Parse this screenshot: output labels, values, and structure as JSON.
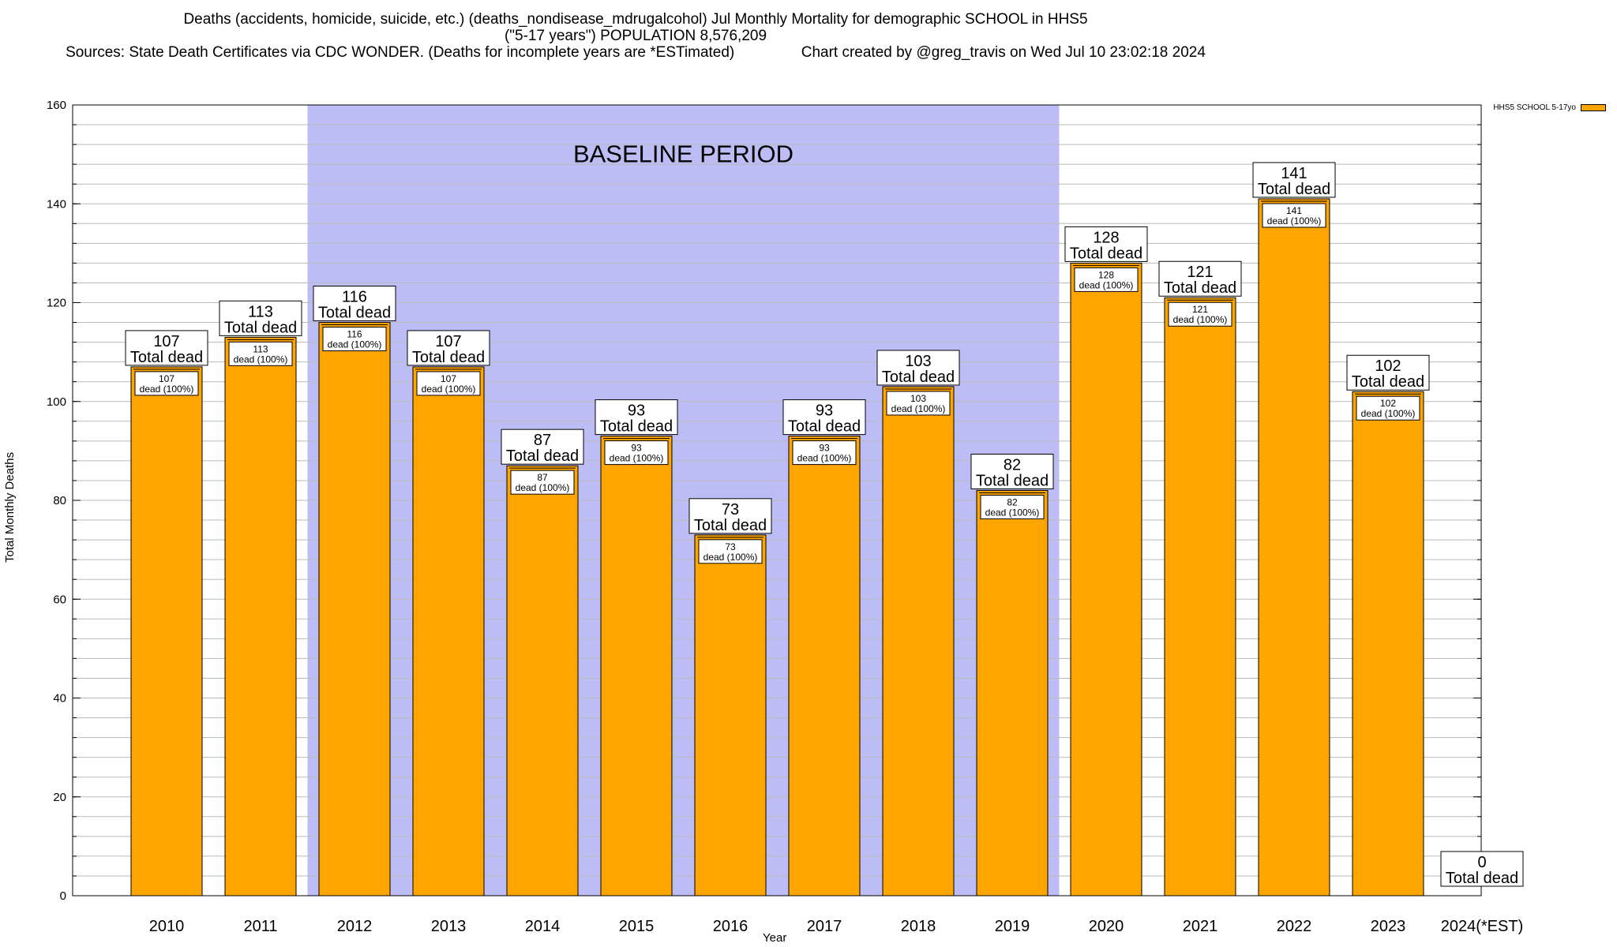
{
  "title_lines": [
    "Deaths (accidents, homicide, suicide, etc.) (deaths_nondisease_mdrugalcohol) Jul Monthly Mortality for demographic SCHOOL in HHS5",
    "(\"5-17 years\") POPULATION 8,576,209",
    "Sources: State Death Certificates via CDC WONDER. (Deaths for incomplete years are *ESTimated)                Chart created by @greg_travis on Wed Jul 10 23:02:18 2024"
  ],
  "colors": {
    "bar": "#FFA500",
    "baseline_band": "#BDBDF5",
    "grid": "#BBBBBB"
  },
  "chart_data": {
    "type": "bar",
    "categories": [
      "2010",
      "2011",
      "2012",
      "2013",
      "2014",
      "2015",
      "2016",
      "2017",
      "2018",
      "2019",
      "2020",
      "2021",
      "2022",
      "2023",
      "2024(*EST)"
    ],
    "series": [
      {
        "name": "HHS5 SCHOOL 5-17yo",
        "values": [
          107,
          113,
          116,
          107,
          87,
          93,
          73,
          93,
          103,
          82,
          128,
          121,
          141,
          102,
          0
        ]
      }
    ],
    "bar_label_top": "Total dead",
    "bar_label_inner": "dead (100%)",
    "baseline_label": "BASELINE PERIOD",
    "baseline_range": [
      "2012",
      "2019"
    ],
    "xlabel": "Year",
    "ylabel": "Total Monthly Deaths",
    "ylim": [
      0,
      160
    ],
    "yticks": [
      0,
      20,
      40,
      60,
      80,
      100,
      120,
      140,
      160
    ],
    "grid": true,
    "legend": "top-right"
  }
}
